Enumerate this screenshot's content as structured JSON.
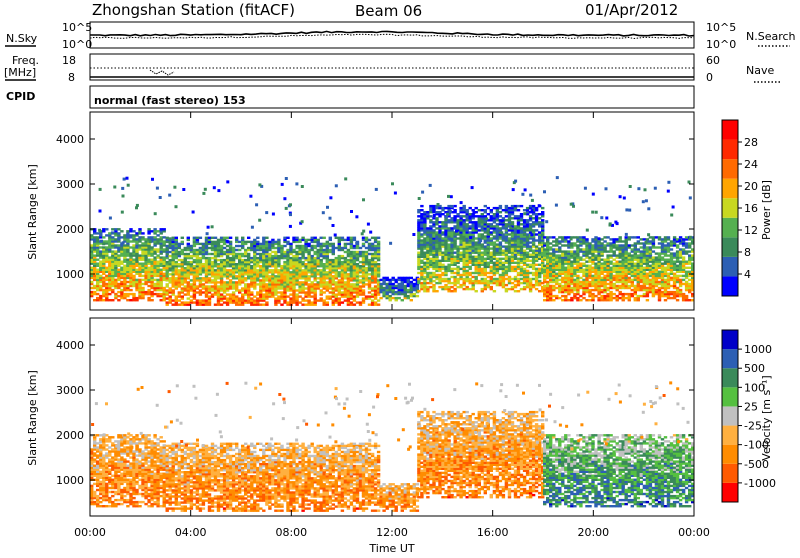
{
  "header": {
    "station": "Zhongshan Station (fitACF)",
    "beam": "Beam 06",
    "date": "01/Apr/2012"
  },
  "summary_panels": {
    "nsky_label": "N.Sky",
    "nsky_ticks": [
      "10^5",
      "10^0"
    ],
    "nsearch_label": "N.Search",
    "nsearch_ticks": [
      "10^5",
      "10^0"
    ],
    "freq_label_1": "Freq.",
    "freq_label_2": "[MHz]",
    "freq_ticks": [
      "18",
      "8"
    ],
    "nave_label": "Nave",
    "nave_ticks": [
      "60",
      "0"
    ],
    "cpid_label": "CPID",
    "cpid_text": "normal (fast stereo) 153"
  },
  "colors": {
    "power_scale": [
      "#0000ff",
      "#2c5fb4",
      "#3a8a5a",
      "#55b050",
      "#c8d820",
      "#ffa500",
      "#ff6a00",
      "#ff2a00",
      "#ff0000"
    ],
    "velocity_scale": [
      "#ff0000",
      "#ff5a00",
      "#ff8c00",
      "#ffb040",
      "#c0c0c0",
      "#55c040",
      "#3a8a5a",
      "#2c5fb4",
      "#0000c8"
    ]
  },
  "chart_data": [
    {
      "type": "heatmap",
      "panel": "power",
      "ylabel": "Slant Range [km]",
      "ylim": [
        200,
        4600
      ],
      "yticks": [
        "1000",
        "2000",
        "3000",
        "4000"
      ],
      "xlim": [
        0,
        24
      ],
      "colorbar_label": "Power [dB]",
      "colorbar_ticks": [
        "4",
        "8",
        "12",
        "16",
        "20",
        "24",
        "28"
      ],
      "bands": [
        {
          "x0": 0.0,
          "x1": 3.0,
          "y0": 400,
          "y1": 2000,
          "level": "high"
        },
        {
          "x0": 3.0,
          "x1": 11.5,
          "y0": 300,
          "y1": 1800,
          "level": "high"
        },
        {
          "x0": 11.5,
          "x1": 13.0,
          "y0": 400,
          "y1": 900,
          "level": "low"
        },
        {
          "x0": 13.0,
          "x1": 18.0,
          "y0": 600,
          "y1": 2500,
          "level": "mid"
        },
        {
          "x0": 18.0,
          "x1": 24.0,
          "y0": 400,
          "y1": 1800,
          "level": "high"
        }
      ]
    },
    {
      "type": "heatmap",
      "panel": "velocity",
      "ylabel": "Slant Range [km]",
      "xlabel": "Time UT",
      "ylim": [
        200,
        4600
      ],
      "yticks": [
        "1000",
        "2000",
        "3000",
        "4000"
      ],
      "xlim": [
        0,
        24
      ],
      "xticks": [
        "00:00",
        "04:00",
        "08:00",
        "12:00",
        "16:00",
        "20:00",
        "00:00"
      ],
      "colorbar_label": "Velocity [m s⁻¹]",
      "colorbar_ticks": [
        "1000",
        "500",
        "100",
        "25",
        "-25",
        "-100",
        "-500",
        "-1000"
      ],
      "bands": [
        {
          "x0": 0.0,
          "x1": 3.0,
          "y0": 400,
          "y1": 2000,
          "level": "neg"
        },
        {
          "x0": 3.0,
          "x1": 11.5,
          "y0": 300,
          "y1": 1800,
          "level": "neg"
        },
        {
          "x0": 11.5,
          "x1": 13.0,
          "y0": 300,
          "y1": 900,
          "level": "neg"
        },
        {
          "x0": 13.0,
          "x1": 18.0,
          "y0": 600,
          "y1": 2500,
          "level": "neg"
        },
        {
          "x0": 18.0,
          "x1": 24.0,
          "y0": 400,
          "y1": 2000,
          "level": "pos"
        }
      ]
    }
  ]
}
